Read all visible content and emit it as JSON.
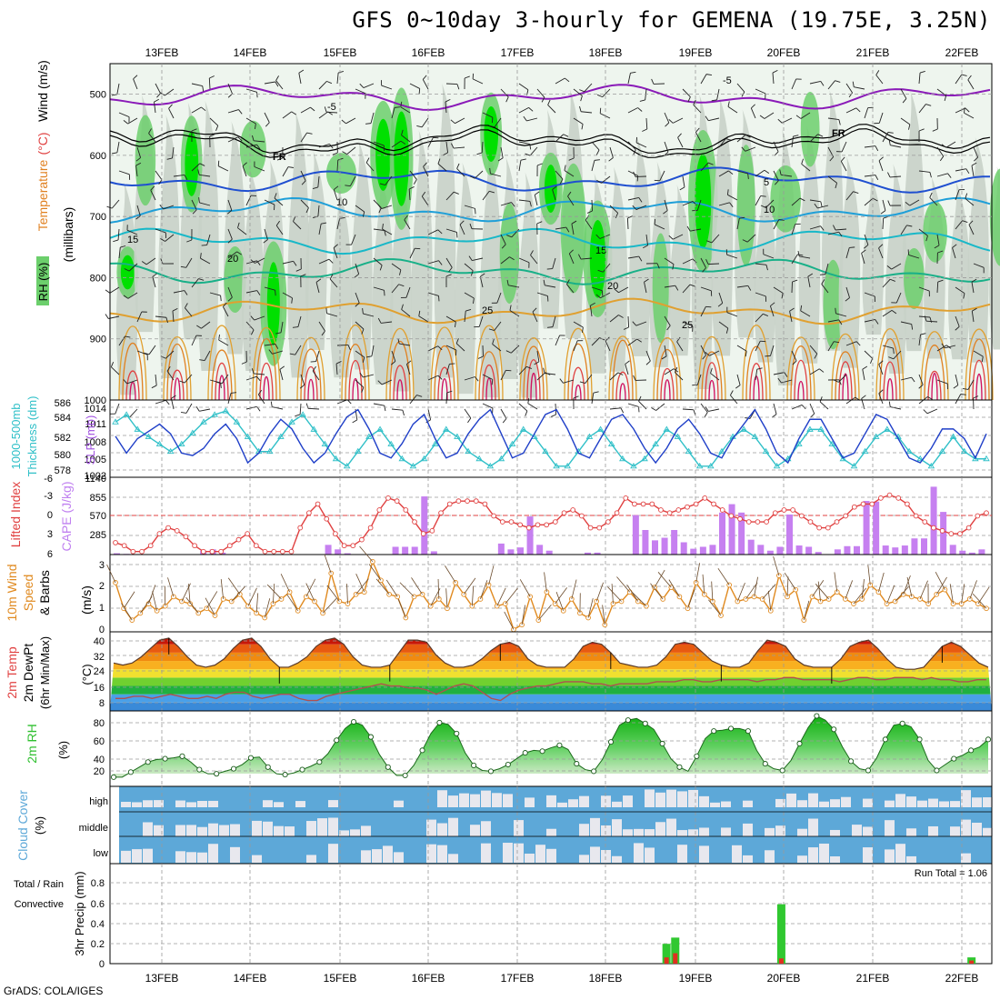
{
  "title": "GFS 0~10day 3-hourly for GEMENA (19.75E, 3.25N)",
  "credit": "GrADS: COLA/IGES",
  "dates": [
    "13FEB",
    "14FEB",
    "15FEB",
    "16FEB",
    "17FEB",
    "18FEB",
    "19FEB",
    "20FEB",
    "21FEB",
    "22FEB"
  ],
  "colors": {
    "grid": "#9a9a9a",
    "rh_green": "#00e000",
    "rh_mid": "#6ccf6c",
    "rh_gray": "#c8d2c8",
    "cape": "#c680f0",
    "lifted": "#e04040",
    "slp": "#1f3fc8",
    "thick": "#30c0c8",
    "wind": "#e08a20",
    "cloud_bg": "#5da8d8",
    "cloud_fill": "#e8e8ee",
    "rh2m": "#30c030",
    "precip_total": "#30c830",
    "precip_conv": "#e03020"
  },
  "chart_data": [
    {
      "id": "upper_air",
      "type": "heatmap",
      "title": "RH (%) / Temperature (°C) / Wind (m/s)",
      "ylabel": "(millibars)",
      "y_ticks": [
        "500",
        "600",
        "700",
        "800",
        "900",
        "1000"
      ],
      "ylim": [
        450,
        1000
      ],
      "axis_labels": {
        "rh": "RH (%)",
        "temp": "Temperature",
        "temp_unit": "(°C)",
        "wind": "Wind (m/s)",
        "pressure": "(millibars)"
      },
      "contours": [
        {
          "label": "-5",
          "color": "#8a1ab8",
          "level_mb": 505
        },
        {
          "label": "FR",
          "color": "#000000",
          "level_mb": 575
        },
        {
          "label": "5",
          "color": "#1f4fd0",
          "level_mb": 640
        },
        {
          "label": "10",
          "color": "#1f9fd8",
          "level_mb": 690
        },
        {
          "label": "15",
          "color": "#18b8c8",
          "level_mb": 740
        },
        {
          "label": "20",
          "color": "#18b088",
          "level_mb": 790
        },
        {
          "label": "25",
          "color": "#e0a030",
          "level_mb": 855
        }
      ],
      "contour_labels": [
        "-5",
        "-5",
        "FR",
        "FR",
        "5",
        "10",
        "10",
        "15",
        "15",
        "20",
        "20",
        "25",
        "25"
      ]
    },
    {
      "id": "slp_thickness",
      "type": "line",
      "ylabel_left": "1000-500mb Thickness (dm)",
      "ylabel_right": "SLP (mb)",
      "left_ticks": [
        "586",
        "584",
        "582",
        "580",
        "578"
      ],
      "right_ticks": [
        "1014",
        "1011",
        "1008",
        "1005",
        "1002"
      ],
      "series": [
        {
          "name": "SLP (mb)",
          "values": [
            1008.5,
            1005,
            1008,
            1009.5,
            1011,
            1009,
            1005,
            1004.5,
            1006,
            1009,
            1011,
            1008,
            1003,
            1005,
            1009,
            1012,
            1010,
            1006,
            1003,
            1005,
            1009,
            1012.5,
            1014,
            1010,
            1005,
            1004,
            1007,
            1011,
            1013,
            1008,
            1004,
            1005,
            1009,
            1012,
            1014,
            1009,
            1004,
            1005,
            1009,
            1013,
            1014,
            1010,
            1005,
            1004,
            1008,
            1012,
            1013,
            1010,
            1006,
            1003,
            1006,
            1010,
            1012,
            1009,
            1005,
            1004,
            1008,
            1011,
            1014,
            1010,
            1005,
            1003,
            1008,
            1012,
            1012,
            1008,
            1004,
            1005,
            1009,
            1013,
            1012,
            1008,
            1004,
            1003,
            1006,
            1010,
            1010,
            1008,
            1004,
            1009
          ]
        },
        {
          "name": "Thickness (dm)",
          "values": [
            584,
            585,
            583,
            582,
            581,
            580,
            581,
            582.5,
            584,
            585,
            585.5,
            584,
            582,
            580,
            580,
            582,
            584,
            585,
            583,
            581,
            579,
            578,
            580,
            582,
            583,
            581,
            579,
            578,
            579,
            581,
            583,
            582,
            580,
            579,
            578,
            579,
            581,
            583,
            582,
            580,
            578,
            578,
            580,
            582,
            583,
            581,
            579,
            578,
            579,
            581,
            583,
            582,
            580,
            578,
            578,
            580,
            582,
            583,
            582,
            580,
            578,
            579,
            581,
            583,
            583,
            581,
            579,
            578,
            580,
            582,
            583,
            582,
            580,
            579,
            578,
            580,
            582,
            580,
            579,
            579
          ]
        }
      ]
    },
    {
      "id": "cape_li",
      "type": "bar",
      "ylabel_left": "Lifted Index",
      "ylabel_right": "CAPE (J/kg)",
      "left_ticks": [
        "-6",
        "-3",
        "0",
        "3",
        "6"
      ],
      "right_ticks": [
        "1140",
        "855",
        "570",
        "285",
        ""
      ],
      "series": [
        {
          "name": "CAPE (J/kg)",
          "values": [
            20,
            10,
            0,
            0,
            0,
            0,
            0,
            0,
            0,
            60,
            80,
            30,
            0,
            0,
            0,
            0,
            0,
            0,
            0,
            0,
            0,
            0,
            150,
            80,
            20,
            0,
            0,
            0,
            0,
            120,
            120,
            120,
            900,
            50,
            0,
            0,
            0,
            0,
            0,
            0,
            170,
            80,
            110,
            590,
            150,
            60,
            0,
            0,
            0,
            30,
            30,
            0,
            0,
            0,
            610,
            380,
            220,
            260,
            380,
            190,
            90,
            120,
            150,
            650,
            780,
            650,
            230,
            150,
            60,
            120,
            620,
            140,
            120,
            40,
            0,
            80,
            130,
            130,
            830,
            820,
            140,
            110,
            140,
            250,
            250,
            1050,
            660,
            150,
            60,
            30,
            80
          ]
        },
        {
          "name": "Lifted Index",
          "values": [
            4.5,
            5,
            6,
            6,
            5,
            3,
            2,
            2.5,
            3.5,
            5,
            6,
            6,
            6,
            5,
            4,
            3,
            5,
            6,
            6,
            6,
            6,
            2,
            -0.5,
            -2,
            0.5,
            3,
            5,
            5,
            4,
            2,
            -1,
            -3,
            -2.5,
            -1,
            1,
            3,
            2.5,
            -0.5,
            -2,
            -2.5,
            -2.5,
            -2.5,
            -2,
            0,
            1,
            1,
            1.5,
            2,
            1.5,
            1.5,
            1,
            -0.5,
            -1,
            0,
            2,
            2,
            1,
            -0.5,
            -3,
            -2,
            -2,
            -2,
            -1,
            -0.5,
            -1,
            -1.5,
            -2,
            -3,
            -2,
            -1,
            0,
            0.5,
            1,
            1,
            1,
            -0.5,
            -1,
            -1,
            0,
            1,
            2,
            2,
            1,
            0,
            -1.5,
            -2,
            -2,
            -3,
            -3.5,
            -3,
            -2,
            0,
            1,
            2,
            2.5,
            3,
            3,
            2,
            0,
            -0.5
          ]
        }
      ]
    },
    {
      "id": "wind10m",
      "type": "line",
      "ylabel": "10m Wind Speed & Barbs (m/s)",
      "label_lines": [
        "10m Wind",
        "Speed",
        "& Barbs"
      ],
      "unit": "(m/s)",
      "y_ticks": [
        "3",
        "2",
        "1",
        "0"
      ],
      "ylim": [
        0,
        3.3
      ],
      "series": [
        {
          "name": "Wind Speed (m/s)",
          "values": [
            2.1,
            1,
            0.5,
            0.8,
            1.2,
            0.9,
            1.1,
            1.5,
            1.3,
            1.2,
            0.8,
            1,
            0.7,
            1.4,
            1.3,
            1.6,
            1.1,
            0.8,
            0.6,
            1.2,
            1.4,
            1.7,
            0.9,
            1.5,
            1.3,
            0.8,
            2.5,
            1.3,
            1.2,
            1.6,
            1.7,
            3,
            2.2,
            1.6,
            1.5,
            0.6,
            1.5,
            1.6,
            1.1,
            1.4,
            1,
            2.1,
            1.6,
            1.1,
            1.4,
            2,
            1.1,
            1.2,
            0.1,
            0.3,
            1.5,
            0.5,
            1.7,
            1.2,
            0.9,
            1.4,
            0.8,
            0.6,
            1.3,
            0.3,
            1.2,
            1.3,
            1.7,
            1.3,
            1.1,
            1.9,
            1.4,
            1.9,
            1.5,
            1,
            2.1,
            1.6,
            1.3,
            0.7,
            2,
            1.3,
            1.4,
            1.5,
            1.4,
            0.9,
            2.4,
            1.5,
            1.8,
            0.5,
            1.5,
            1.3,
            1.4,
            1.7,
            1.4,
            1.2,
            1.4,
            2,
            1.7,
            1.2,
            1.3,
            1.6,
            1.5,
            1.4,
            1.2,
            1.6,
            1.8,
            1.2,
            1.2,
            1.4,
            1.2,
            1
          ]
        }
      ]
    },
    {
      "id": "temp_dewpt",
      "type": "area",
      "ylabel": "2m Temp / 2m DewPt (6hr Min/Max) (°C)",
      "label_lines": [
        "2m Temp",
        "2m DewPt",
        "(6hr Min/Max)"
      ],
      "unit": "(°C)",
      "y_ticks": [
        "40",
        "32",
        "24",
        "16",
        "8"
      ],
      "ylim": [
        4,
        42
      ],
      "series": [
        {
          "name": "2m Temp (°C)",
          "values": [
            27,
            26,
            27,
            30,
            34,
            38,
            39,
            35,
            30,
            26,
            25,
            26,
            29,
            34,
            38,
            39,
            35,
            29,
            25,
            25,
            27,
            30,
            35,
            38,
            39,
            36,
            30,
            26,
            25,
            25,
            26,
            32,
            38,
            38,
            37,
            31,
            27,
            25,
            25,
            26,
            29,
            33,
            36,
            37,
            35,
            29,
            26,
            25,
            25,
            25,
            29,
            35,
            37,
            36,
            32,
            27,
            26,
            25,
            25,
            26,
            30,
            36,
            37,
            36,
            32,
            28,
            26,
            25,
            25,
            27,
            33,
            38,
            37,
            35,
            29,
            26,
            25,
            25,
            25,
            29,
            35,
            37,
            38,
            34,
            29,
            25,
            24,
            24,
            25,
            30,
            35,
            37,
            35,
            31,
            27,
            25
          ]
        },
        {
          "name": "2m DewPt (°C)",
          "values": [
            10,
            10,
            11,
            11,
            10,
            11,
            12,
            11,
            10,
            10,
            11,
            10,
            12,
            13,
            13,
            11,
            10,
            11,
            12,
            12,
            10,
            9,
            9,
            11,
            12,
            13,
            14,
            15,
            16,
            17,
            16,
            16,
            15,
            15,
            14,
            12,
            14,
            16,
            17,
            16,
            13,
            10,
            9,
            12,
            14,
            15,
            16,
            16,
            17,
            18,
            18,
            18,
            17,
            17,
            16,
            17,
            17,
            17,
            17,
            18,
            18,
            18,
            19,
            19,
            18,
            18,
            19,
            19,
            19,
            19,
            18,
            19,
            19,
            20,
            20,
            19,
            19,
            19,
            19,
            18,
            19,
            20,
            20,
            19,
            19,
            20,
            20,
            20,
            19,
            20,
            19,
            19,
            18,
            18,
            19,
            19
          ]
        }
      ]
    },
    {
      "id": "rh2m",
      "type": "area",
      "ylabel": "2m RH (%)",
      "unit": "(%)",
      "y_ticks": [
        "80",
        "60",
        "40",
        "20"
      ],
      "ylim": [
        5,
        95
      ],
      "series": [
        {
          "name": "2m RH (%)",
          "values": [
            16,
            16,
            22,
            28,
            34,
            37,
            38,
            39,
            41,
            34,
            25,
            20,
            20,
            23,
            26,
            31,
            39,
            40,
            28,
            20,
            19,
            21,
            25,
            29,
            34,
            44,
            60,
            74,
            82,
            78,
            64,
            43,
            28,
            18,
            18,
            30,
            48,
            68,
            81,
            79,
            68,
            45,
            30,
            24,
            23,
            26,
            31,
            38,
            45,
            48,
            47,
            51,
            54,
            49,
            32,
            25,
            23,
            37,
            58,
            78,
            84,
            86,
            80,
            73,
            56,
            38,
            28,
            23,
            41,
            62,
            71,
            72,
            74,
            74,
            71,
            48,
            32,
            26,
            24,
            36,
            56,
            75,
            89,
            84,
            73,
            52,
            35,
            26,
            24,
            39,
            61,
            78,
            80,
            76,
            61,
            36,
            24,
            31,
            38,
            42,
            48,
            52,
            61
          ]
        }
      ]
    },
    {
      "id": "cloud",
      "type": "heatmap",
      "ylabel": "Cloud Cover (%)",
      "unit": "(%)",
      "levels": [
        "high",
        "middle",
        "low"
      ]
    },
    {
      "id": "precip",
      "type": "bar",
      "ylabel": "3hr Precip (mm)",
      "ylabel_left": "Total / Rain",
      "ylabel_conv": "Convective",
      "y_ticks": [
        "0.8",
        "0.6",
        "0.4",
        "0.2",
        "0"
      ],
      "ylim": [
        0,
        0.96
      ],
      "run_total_label": "Run Total = 1.06",
      "series": [
        {
          "name": "Total / Rain",
          "x": [
            50.2,
            51.0,
            60.7,
            78.1
          ],
          "values": [
            0.19,
            0.25,
            0.57,
            0.06
          ]
        },
        {
          "name": "Convective",
          "x": [
            50.2,
            51.0,
            60.7,
            78.1
          ],
          "values": [
            0.06,
            0.1,
            0.05,
            0.03
          ]
        }
      ]
    }
  ]
}
